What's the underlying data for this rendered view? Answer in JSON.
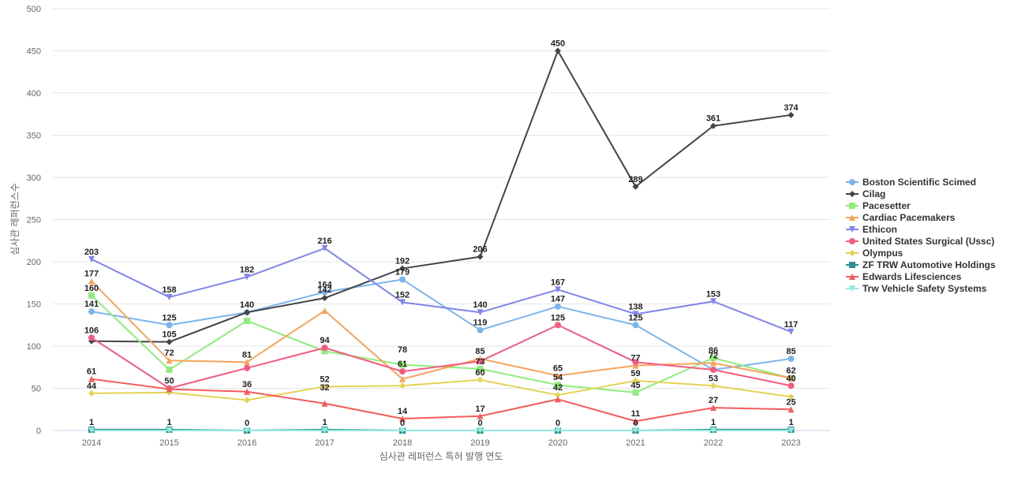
{
  "chart_data": {
    "type": "line",
    "xlabel": "심사관 레퍼런스 특허 발행 연도",
    "ylabel": "심사관 레퍼런스수",
    "ylim": [
      0,
      500
    ],
    "yticks": [
      0,
      50,
      100,
      150,
      200,
      250,
      300,
      350,
      400,
      450,
      500
    ],
    "grid": true,
    "legend_position": "right",
    "categories": [
      "2014",
      "2015",
      "2016",
      "2017",
      "2018",
      "2019",
      "2020",
      "2021",
      "2022",
      "2023"
    ],
    "series": [
      {
        "name": "Boston Scientific Scimed",
        "color": "#7cb5ec",
        "marker": "circle",
        "values": [
          141,
          125,
          140,
          164,
          179,
          119,
          147,
          125,
          72,
          85
        ]
      },
      {
        "name": "Cilag",
        "color": "#434348",
        "marker": "diamond",
        "values": [
          106,
          105,
          140,
          157,
          192,
          206,
          450,
          289,
          361,
          374
        ]
      },
      {
        "name": "Pacesetter",
        "color": "#90ed7d",
        "marker": "square",
        "values": [
          160,
          72,
          130,
          94,
          78,
          73,
          54,
          45,
          86,
          62
        ]
      },
      {
        "name": "Cardiac Pacemakers",
        "color": "#f7a35c",
        "marker": "triangle",
        "values": [
          177,
          83,
          81,
          142,
          61,
          85,
          65,
          77,
          80,
          62
        ]
      },
      {
        "name": "Ethicon",
        "color": "#8085e9",
        "marker": "triangle-down",
        "values": [
          203,
          158,
          182,
          216,
          152,
          140,
          167,
          138,
          153,
          117
        ]
      },
      {
        "name": "United States Surgical (Ussc)",
        "color": "#f15c80",
        "marker": "circle",
        "values": [
          110,
          50,
          74,
          98,
          70,
          82,
          125,
          81,
          72,
          53
        ]
      },
      {
        "name": "Olympus",
        "color": "#e4d354",
        "marker": "diamond",
        "values": [
          44,
          45,
          36,
          52,
          53,
          60,
          42,
          59,
          53,
          40
        ]
      },
      {
        "name": "ZF TRW Automotive Holdings",
        "color": "#2b908f",
        "marker": "square",
        "values": [
          1,
          1,
          0,
          1,
          0,
          0,
          0,
          0,
          1,
          1
        ]
      },
      {
        "name": "Edwards Lifesciences",
        "color": "#f45b5b",
        "marker": "triangle",
        "values": [
          61,
          49,
          46,
          32,
          14,
          17,
          37,
          11,
          27,
          25
        ]
      },
      {
        "name": "Trw Vehicle Safety Systems",
        "color": "#91e8e1",
        "marker": "triangle-down",
        "values": [
          0,
          0,
          0,
          0,
          0,
          0,
          0,
          0,
          0,
          0
        ]
      }
    ],
    "data_labels": [
      {
        "text": "1",
        "x": "2014",
        "y": 1
      },
      {
        "text": "1",
        "x": "2015",
        "y": 1
      },
      {
        "text": "0",
        "x": "2016",
        "y": 0
      },
      {
        "text": "1",
        "x": "2017",
        "y": 1
      },
      {
        "text": "0",
        "x": "2018",
        "y": 0
      },
      {
        "text": "0",
        "x": "2019",
        "y": 0
      },
      {
        "text": "0",
        "x": "2020",
        "y": 0
      },
      {
        "text": "0",
        "x": "2021",
        "y": 0
      },
      {
        "text": "1",
        "x": "2022",
        "y": 1
      },
      {
        "text": "1",
        "x": "2023",
        "y": 1
      },
      {
        "text": "44",
        "x": "2014",
        "y": 44
      },
      {
        "text": "61",
        "x": "2014",
        "y": 61
      },
      {
        "text": "106",
        "x": "2014",
        "y": 110
      },
      {
        "text": "141",
        "x": "2014",
        "y": 141
      },
      {
        "text": "160",
        "x": "2014",
        "y": 160
      },
      {
        "text": "177",
        "x": "2014",
        "y": 177
      },
      {
        "text": "203",
        "x": "2014",
        "y": 203
      },
      {
        "text": "50",
        "x": "2015",
        "y": 50
      },
      {
        "text": "72",
        "x": "2015",
        "y": 83
      },
      {
        "text": "105",
        "x": "2015",
        "y": 105
      },
      {
        "text": "125",
        "x": "2015",
        "y": 125
      },
      {
        "text": "158",
        "x": "2015",
        "y": 158
      },
      {
        "text": "36",
        "x": "2016",
        "y": 46
      },
      {
        "text": "81",
        "x": "2016",
        "y": 81
      },
      {
        "text": "140",
        "x": "2016",
        "y": 140
      },
      {
        "text": "182",
        "x": "2016",
        "y": 182
      },
      {
        "text": "32",
        "x": "2017",
        "y": 42
      },
      {
        "text": "52",
        "x": "2017",
        "y": 52
      },
      {
        "text": "94",
        "x": "2017",
        "y": 98
      },
      {
        "text": "142",
        "x": "2017",
        "y": 158
      },
      {
        "text": "164",
        "x": "2017",
        "y": 164
      },
      {
        "text": "216",
        "x": "2017",
        "y": 216
      },
      {
        "text": "14",
        "x": "2018",
        "y": 14
      },
      {
        "text": "61",
        "x": "2018",
        "y": 70
      },
      {
        "text": "78",
        "x": "2018",
        "y": 87
      },
      {
        "text": "152",
        "x": "2018",
        "y": 152
      },
      {
        "text": "179",
        "x": "2018",
        "y": 179
      },
      {
        "text": "192",
        "x": "2018",
        "y": 192
      },
      {
        "text": "17",
        "x": "2019",
        "y": 17
      },
      {
        "text": "60",
        "x": "2019",
        "y": 60
      },
      {
        "text": "73",
        "x": "2019",
        "y": 73
      },
      {
        "text": "85",
        "x": "2019",
        "y": 85
      },
      {
        "text": "119",
        "x": "2019",
        "y": 119
      },
      {
        "text": "140",
        "x": "2019",
        "y": 140
      },
      {
        "text": "206",
        "x": "2019",
        "y": 206
      },
      {
        "text": "42",
        "x": "2020",
        "y": 42
      },
      {
        "text": "54",
        "x": "2020",
        "y": 54
      },
      {
        "text": "65",
        "x": "2020",
        "y": 65
      },
      {
        "text": "125",
        "x": "2020",
        "y": 125
      },
      {
        "text": "147",
        "x": "2020",
        "y": 147
      },
      {
        "text": "167",
        "x": "2020",
        "y": 167
      },
      {
        "text": "450",
        "x": "2020",
        "y": 450
      },
      {
        "text": "11",
        "x": "2021",
        "y": 11
      },
      {
        "text": "45",
        "x": "2021",
        "y": 45
      },
      {
        "text": "59",
        "x": "2021",
        "y": 59
      },
      {
        "text": "77",
        "x": "2021",
        "y": 77
      },
      {
        "text": "125",
        "x": "2021",
        "y": 125
      },
      {
        "text": "138",
        "x": "2021",
        "y": 138
      },
      {
        "text": "289",
        "x": "2021",
        "y": 289
      },
      {
        "text": "27",
        "x": "2022",
        "y": 27
      },
      {
        "text": "53",
        "x": "2022",
        "y": 53
      },
      {
        "text": "72",
        "x": "2022",
        "y": 80
      },
      {
        "text": "86",
        "x": "2022",
        "y": 86
      },
      {
        "text": "153",
        "x": "2022",
        "y": 153
      },
      {
        "text": "361",
        "x": "2022",
        "y": 361
      },
      {
        "text": "25",
        "x": "2023",
        "y": 25
      },
      {
        "text": "40",
        "x": "2023",
        "y": 53
      },
      {
        "text": "62",
        "x": "2023",
        "y": 62
      },
      {
        "text": "85",
        "x": "2023",
        "y": 85
      },
      {
        "text": "117",
        "x": "2023",
        "y": 117
      },
      {
        "text": "374",
        "x": "2023",
        "y": 374
      }
    ]
  }
}
